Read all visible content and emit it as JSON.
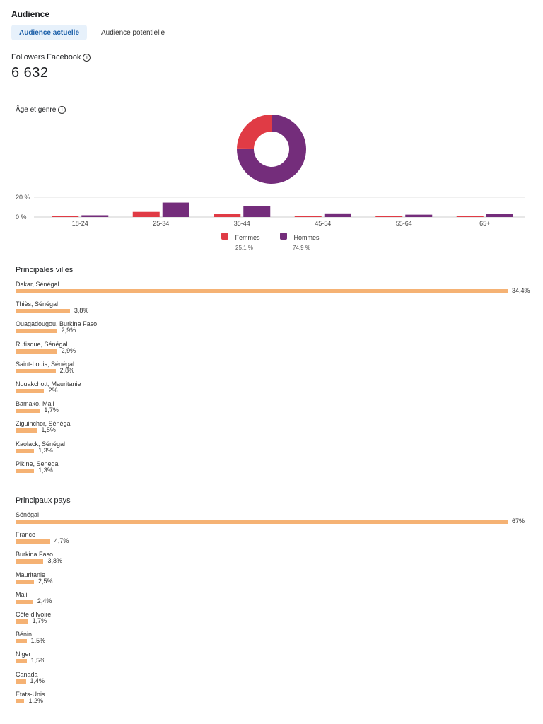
{
  "header": {
    "title": "Audience",
    "tabs": [
      {
        "label": "Audience actuelle",
        "active": true
      },
      {
        "label": "Audience potentielle",
        "active": false
      }
    ]
  },
  "followers": {
    "label": "Followers Facebook",
    "value": "6 632"
  },
  "age_gender": {
    "label": "Âge et genre",
    "y_ticks": [
      "20 %",
      "0 %"
    ],
    "colors": {
      "femmes": "#e03b45",
      "hommes": "#742d7b"
    },
    "legend": [
      {
        "name": "Femmes",
        "pct": "25,1 %"
      },
      {
        "name": "Hommes",
        "pct": "74,9 %"
      }
    ]
  },
  "chart_data": [
    {
      "type": "pie",
      "labels": [
        "Femmes",
        "Hommes"
      ],
      "values": [
        25.1,
        74.9
      ]
    },
    {
      "type": "bar",
      "categories": [
        "18-24",
        "25-34",
        "35-44",
        "45-54",
        "55-64",
        "65+"
      ],
      "series": [
        {
          "name": "Femmes",
          "values": [
            0.6,
            5.2,
            3.4,
            1.3,
            0.5,
            1.1
          ]
        },
        {
          "name": "Hommes",
          "values": [
            1.8,
            14.6,
            10.8,
            3.7,
            2.4,
            3.5
          ]
        }
      ],
      "ylim": [
        0,
        20
      ]
    }
  ],
  "cities": {
    "title": "Principales villes",
    "items": [
      {
        "label": "Dakar, Sénégal",
        "pct": "34,4%",
        "value": 34.4
      },
      {
        "label": "Thiès, Sénégal",
        "pct": "3,8%",
        "value": 3.8
      },
      {
        "label": "Ouagadougou, Burkina Faso",
        "pct": "2,9%",
        "value": 2.9
      },
      {
        "label": "Rufisque, Sénégal",
        "pct": "2,9%",
        "value": 2.9
      },
      {
        "label": "Saint-Louis, Sénégal",
        "pct": "2,8%",
        "value": 2.8
      },
      {
        "label": "Nouakchott, Mauritanie",
        "pct": "2%",
        "value": 2.0
      },
      {
        "label": "Bamako, Mali",
        "pct": "1,7%",
        "value": 1.7
      },
      {
        "label": "Ziguinchor, Sénégal",
        "pct": "1,5%",
        "value": 1.5
      },
      {
        "label": "Kaolack, Sénégal",
        "pct": "1,3%",
        "value": 1.3
      },
      {
        "label": "Pikine, Senegal",
        "pct": "1,3%",
        "value": 1.3
      }
    ]
  },
  "countries": {
    "title": "Principaux pays",
    "items": [
      {
        "label": "Sénégal",
        "pct": "67%",
        "value": 67
      },
      {
        "label": "France",
        "pct": "4,7%",
        "value": 4.7
      },
      {
        "label": "Burkina Faso",
        "pct": "3,8%",
        "value": 3.8
      },
      {
        "label": "Mauritanie",
        "pct": "2,5%",
        "value": 2.5
      },
      {
        "label": "Mali",
        "pct": "2,4%",
        "value": 2.4
      },
      {
        "label": "Côte d'Ivoire",
        "pct": "1,7%",
        "value": 1.7
      },
      {
        "label": "Bénin",
        "pct": "1,5%",
        "value": 1.5
      },
      {
        "label": "Niger",
        "pct": "1,5%",
        "value": 1.5
      },
      {
        "label": "Canada",
        "pct": "1,4%",
        "value": 1.4
      },
      {
        "label": "États-Unis",
        "pct": "1,2%",
        "value": 1.2
      }
    ]
  },
  "bar_color": "#f5b274"
}
